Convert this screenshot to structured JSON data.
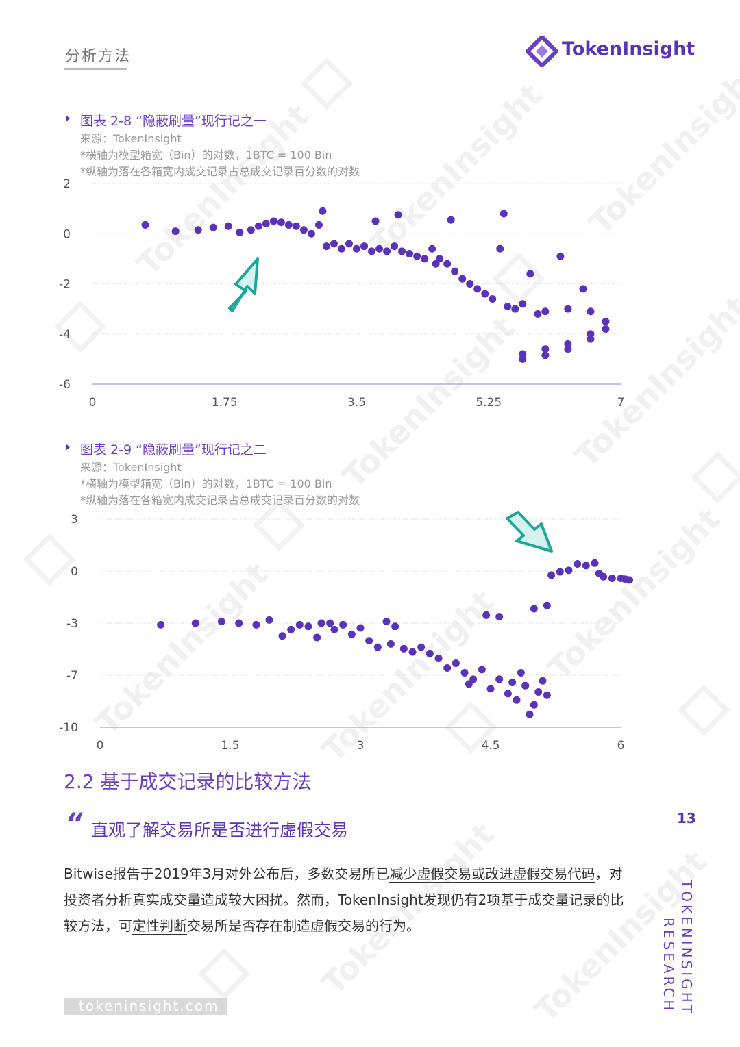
{
  "header": {
    "section": "分析方法",
    "brand": "TokenInsight"
  },
  "chart1": {
    "caption": "图表 2-8 “隐蔽刷量”现行记之一",
    "source": "来源：TokenInsight",
    "note1": "*横轴为模型箱宽（Bin）的对数，1BTC = 100 Bin",
    "note2": "*纵轴为落在各箱宽内成交记录占总成交记录百分数的对数",
    "xticks": [
      "0",
      "1.75",
      "3.5",
      "5.25",
      "7"
    ],
    "yticks": [
      "2",
      "0",
      "-2",
      "-4",
      "-6"
    ]
  },
  "chart2": {
    "caption": "图表 2-9 “隐蔽刷量”现行记之二",
    "source": "来源：TokenInsight",
    "note1": "*横轴为模型箱宽（Bin）的对数，1BTC = 100 Bin",
    "note2": "*纵轴为落在各箱宽内成交记录占总成交记录百分数的对数",
    "xticks": [
      "0",
      "1.5",
      "3",
      "4.5",
      "6"
    ],
    "yticks": [
      "3",
      "0",
      "-3",
      "-7",
      "-10"
    ]
  },
  "chart_data": [
    {
      "type": "scatter",
      "title": "图表 2-8 “隐蔽刷量”现行记之一",
      "xlabel": "",
      "ylabel": "",
      "xlim": [
        0,
        7
      ],
      "ylim": [
        -6,
        2
      ],
      "grid": true,
      "points": [
        [
          0.7,
          0.35
        ],
        [
          1.1,
          0.1
        ],
        [
          1.4,
          0.15
        ],
        [
          1.6,
          0.25
        ],
        [
          1.8,
          0.3
        ],
        [
          1.95,
          0.05
        ],
        [
          2.1,
          0.15
        ],
        [
          2.2,
          0.3
        ],
        [
          2.3,
          0.4
        ],
        [
          2.4,
          0.5
        ],
        [
          2.5,
          0.45
        ],
        [
          2.6,
          0.35
        ],
        [
          2.7,
          0.3
        ],
        [
          2.8,
          0.15
        ],
        [
          2.9,
          0.0
        ],
        [
          3.0,
          0.35
        ],
        [
          3.05,
          0.9
        ],
        [
          3.1,
          -0.5
        ],
        [
          3.2,
          -0.4
        ],
        [
          3.3,
          -0.6
        ],
        [
          3.4,
          -0.4
        ],
        [
          3.5,
          -0.6
        ],
        [
          3.6,
          -0.5
        ],
        [
          3.7,
          -0.7
        ],
        [
          3.75,
          0.5
        ],
        [
          3.8,
          -0.6
        ],
        [
          3.9,
          -0.7
        ],
        [
          4.0,
          -0.5
        ],
        [
          4.05,
          0.75
        ],
        [
          4.1,
          -0.7
        ],
        [
          4.2,
          -0.8
        ],
        [
          4.3,
          -0.9
        ],
        [
          4.4,
          -1.0
        ],
        [
          4.5,
          -0.6
        ],
        [
          4.55,
          -1.2
        ],
        [
          4.6,
          -1.0
        ],
        [
          4.7,
          -1.2
        ],
        [
          4.75,
          0.55
        ],
        [
          4.8,
          -1.5
        ],
        [
          4.9,
          -1.8
        ],
        [
          5.0,
          -2.0
        ],
        [
          5.1,
          -2.2
        ],
        [
          5.2,
          -2.4
        ],
        [
          5.3,
          -2.6
        ],
        [
          5.4,
          -0.6
        ],
        [
          5.45,
          0.8
        ],
        [
          5.5,
          -2.9
        ],
        [
          5.6,
          -3.0
        ],
        [
          5.7,
          -2.8
        ],
        [
          5.8,
          -1.6
        ],
        [
          5.9,
          -3.2
        ],
        [
          6.0,
          -3.1
        ],
        [
          6.2,
          -0.9
        ],
        [
          6.3,
          -3.0
        ],
        [
          6.5,
          -2.2
        ],
        [
          6.6,
          -3.1
        ],
        [
          5.7,
          -4.8
        ],
        [
          6.0,
          -4.6
        ],
        [
          6.3,
          -4.4
        ],
        [
          6.6,
          -4.0
        ],
        [
          6.8,
          -3.5
        ],
        [
          5.7,
          -5.0
        ],
        [
          6.0,
          -4.85
        ],
        [
          6.3,
          -4.6
        ],
        [
          6.6,
          -4.2
        ],
        [
          6.8,
          -3.8
        ]
      ]
    },
    {
      "type": "scatter",
      "title": "图表 2-9 “隐蔽刷量”现行记之二",
      "xlabel": "",
      "ylabel": "",
      "xlim": [
        0,
        6
      ],
      "ylim": [
        -10,
        3
      ],
      "grid": true,
      "points": [
        [
          0.7,
          -3.6
        ],
        [
          1.1,
          -3.5
        ],
        [
          1.4,
          -3.4
        ],
        [
          1.6,
          -3.5
        ],
        [
          1.8,
          -3.6
        ],
        [
          1.95,
          -3.3
        ],
        [
          2.1,
          -4.3
        ],
        [
          2.2,
          -3.9
        ],
        [
          2.3,
          -3.6
        ],
        [
          2.4,
          -3.7
        ],
        [
          2.5,
          -4.4
        ],
        [
          2.55,
          -3.5
        ],
        [
          2.65,
          -3.5
        ],
        [
          2.7,
          -3.9
        ],
        [
          2.8,
          -3.6
        ],
        [
          2.9,
          -4.2
        ],
        [
          3.0,
          -3.8
        ],
        [
          3.1,
          -4.6
        ],
        [
          3.2,
          -5.0
        ],
        [
          3.3,
          -3.4
        ],
        [
          3.35,
          -4.8
        ],
        [
          3.4,
          -3.7
        ],
        [
          3.5,
          -5.1
        ],
        [
          3.6,
          -5.3
        ],
        [
          3.7,
          -5.0
        ],
        [
          3.8,
          -5.4
        ],
        [
          3.9,
          -5.7
        ],
        [
          4.0,
          -6.3
        ],
        [
          4.1,
          -6.0
        ],
        [
          4.2,
          -6.6
        ],
        [
          4.25,
          -7.3
        ],
        [
          4.3,
          -7.0
        ],
        [
          4.4,
          -6.4
        ],
        [
          4.45,
          -3.0
        ],
        [
          4.5,
          -7.6
        ],
        [
          4.6,
          -7.0
        ],
        [
          4.6,
          -3.1
        ],
        [
          4.7,
          -7.9
        ],
        [
          4.75,
          -7.2
        ],
        [
          4.8,
          -8.3
        ],
        [
          4.85,
          -6.6
        ],
        [
          4.9,
          -7.4
        ],
        [
          4.95,
          -9.2
        ],
        [
          5.0,
          -8.6
        ],
        [
          5.05,
          -7.8
        ],
        [
          5.1,
          -7.1
        ],
        [
          5.15,
          -8.0
        ],
        [
          5.0,
          -2.6
        ],
        [
          5.15,
          -2.4
        ],
        [
          5.2,
          -0.5
        ],
        [
          5.3,
          -0.3
        ],
        [
          5.4,
          -0.2
        ],
        [
          5.5,
          0.2
        ],
        [
          5.6,
          0.1
        ],
        [
          5.7,
          0.25
        ],
        [
          5.75,
          -0.4
        ],
        [
          5.8,
          -0.6
        ],
        [
          5.9,
          -0.7
        ],
        [
          6.0,
          -0.7
        ],
        [
          6.05,
          -0.75
        ],
        [
          6.1,
          -0.8
        ]
      ]
    }
  ],
  "section": {
    "heading": "2.2 基于成交记录的比较方法",
    "subheading": "直观了解交易所是否进行虚假交易",
    "quote_mark": "“",
    "para_1": "Bitwise报告于2019年3月对外公布后，多数交易所已",
    "para_link1": "减少虚假交易或改进虚假交易代码",
    "para_2": "，对投资者分析真实成交量造成较大困扰。然而，TokenInsight发现仍有2项基于成交量记录的比较方法，可",
    "para_link2": "定性判断",
    "para_3": "交易所是否存在制造虚假交易的行为。"
  },
  "side": {
    "page_number": "13",
    "vertical_1": "TOKENINSIGHT",
    "vertical_2": "RESEARCH"
  },
  "footer": {
    "url": "tokeninsight.com"
  },
  "watermark": "TokenInsight",
  "colors": {
    "purple": "#5a33b8",
    "arrow": "#1aa89a"
  }
}
